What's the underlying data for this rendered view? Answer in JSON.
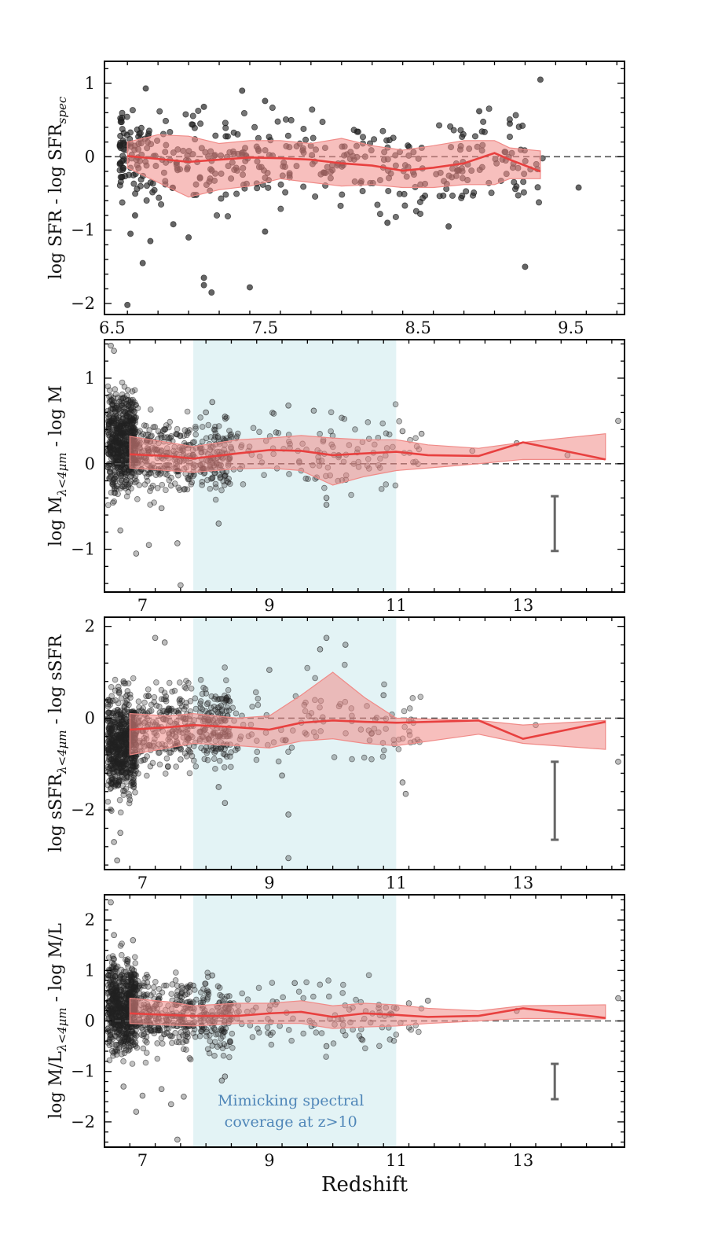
{
  "colors": {
    "points": "#222222",
    "median_line": "#e8403f",
    "band_fill": "#f08a87",
    "shade": "#d4ecef",
    "zero_line": "#555555",
    "errorbar": "#666666",
    "annotation": "#4f86b8"
  },
  "chart_data": [
    {
      "type": "scatter",
      "ylabel": "log SFR - log SFR",
      "ylabel_sub": "spec",
      "xlim": [
        6.45,
        9.85
      ],
      "ylim": [
        -2.15,
        1.3
      ],
      "xticks": [
        6.5,
        7.5,
        8.5,
        9.5
      ],
      "yticks": [
        -2,
        -1,
        0,
        1
      ],
      "xlabel": "",
      "shade": null,
      "median": {
        "x": [
          6.6,
          6.8,
          7.0,
          7.2,
          7.4,
          7.6,
          7.8,
          8.0,
          8.2,
          8.4,
          8.6,
          8.8,
          9.0,
          9.1,
          9.3
        ],
        "y": [
          0.01,
          -0.03,
          -0.07,
          -0.04,
          -0.01,
          -0.02,
          -0.04,
          -0.09,
          -0.12,
          -0.19,
          -0.15,
          -0.09,
          0.05,
          -0.04,
          -0.2
        ],
        "lo": [
          -0.15,
          -0.35,
          -0.55,
          -0.45,
          -0.4,
          -0.3,
          -0.35,
          -0.4,
          -0.38,
          -0.42,
          -0.42,
          -0.38,
          -0.38,
          -0.3,
          -0.3
        ],
        "hi": [
          0.2,
          0.3,
          0.28,
          0.18,
          0.22,
          0.22,
          0.18,
          0.25,
          0.15,
          0.09,
          0.15,
          0.22,
          0.22,
          0.12,
          0.08
        ]
      },
      "errorbar": null,
      "points_spread": 0.3,
      "points_x_range": [
        6.55,
        9.35
      ],
      "points": [
        [
          6.62,
          -1.05
        ],
        [
          6.65,
          -0.8
        ],
        [
          6.7,
          -1.45
        ],
        [
          6.72,
          0.93
        ],
        [
          6.75,
          -1.15
        ],
        [
          6.9,
          -0.92
        ],
        [
          7.0,
          -1.1
        ],
        [
          7.05,
          -0.52
        ],
        [
          7.1,
          -1.65
        ],
        [
          7.15,
          -1.85
        ],
        [
          6.6,
          -2.02
        ],
        [
          7.1,
          -1.75
        ],
        [
          7.5,
          -1.02
        ],
        [
          7.4,
          -1.78
        ],
        [
          7.35,
          0.9
        ],
        [
          8.3,
          -0.9
        ],
        [
          8.7,
          -0.95
        ],
        [
          9.2,
          -1.5
        ],
        [
          9.55,
          -0.42
        ],
        [
          9.3,
          1.05
        ],
        [
          8.9,
          0.62
        ],
        [
          9.1,
          0.45
        ],
        [
          7.5,
          0.76
        ],
        [
          7.1,
          0.68
        ]
      ],
      "annotation": null
    },
    {
      "type": "scatter",
      "ylabel": "log M",
      "ylabel_sub": "λ<4μm",
      "ylabel_tail": " - log M",
      "xlim": [
        6.4,
        14.6
      ],
      "ylim": [
        -1.5,
        1.45
      ],
      "xticks": [
        7,
        9,
        11,
        13
      ],
      "yticks": [
        -1,
        0,
        1
      ],
      "xlabel": "",
      "shade": [
        7.8,
        11.0
      ],
      "median": {
        "x": [
          6.8,
          7.4,
          7.8,
          8.5,
          9.0,
          9.5,
          10.0,
          10.5,
          11.0,
          11.5,
          12.3,
          13.0,
          14.3
        ],
        "y": [
          0.11,
          0.09,
          0.06,
          0.12,
          0.16,
          0.15,
          0.1,
          0.12,
          0.14,
          0.1,
          0.09,
          0.25,
          0.05
        ],
        "lo": [
          -0.05,
          -0.08,
          -0.1,
          -0.06,
          -0.05,
          -0.08,
          -0.25,
          -0.15,
          -0.08,
          -0.05,
          0.0,
          0.05,
          0.05
        ],
        "hi": [
          0.32,
          0.25,
          0.2,
          0.28,
          0.3,
          0.33,
          0.3,
          0.28,
          0.28,
          0.22,
          0.18,
          0.25,
          0.35
        ]
      },
      "errorbar": {
        "x": 13.5,
        "y_top": -0.38,
        "y_bottom": -1.02
      },
      "points_spread": 0.22,
      "points_x_range": [
        6.5,
        11.5
      ],
      "points": [
        [
          6.55,
          1.32
        ],
        [
          6.5,
          1.38
        ],
        [
          6.65,
          -0.78
        ],
        [
          6.9,
          -1.05
        ],
        [
          7.1,
          -0.95
        ],
        [
          7.3,
          -0.52
        ],
        [
          7.55,
          -0.93
        ],
        [
          7.6,
          -1.42
        ],
        [
          8.2,
          -0.7
        ],
        [
          8.3,
          0.55
        ],
        [
          8.1,
          0.72
        ],
        [
          9.3,
          0.68
        ],
        [
          9.9,
          -0.48
        ],
        [
          9.9,
          -0.4
        ],
        [
          12.2,
          0.15
        ],
        [
          12.9,
          0.24
        ],
        [
          13.7,
          0.1
        ],
        [
          14.5,
          0.5
        ],
        [
          11.1,
          0.38
        ],
        [
          11.4,
          0.35
        ],
        [
          9.7,
          0.62
        ],
        [
          8.0,
          0.6
        ]
      ],
      "annotation": null
    },
    {
      "type": "scatter",
      "ylabel": "log sSFR",
      "ylabel_sub": "λ<4μm",
      "ylabel_tail": " - log sSFR",
      "xlim": [
        6.4,
        14.6
      ],
      "ylim": [
        -3.3,
        2.2
      ],
      "xticks": [
        7,
        9,
        11,
        13
      ],
      "yticks": [
        -2,
        0,
        2
      ],
      "xlabel": "",
      "shade": [
        7.8,
        11.0
      ],
      "median": {
        "x": [
          6.8,
          7.4,
          7.8,
          8.5,
          9.0,
          9.5,
          10.0,
          10.5,
          11.0,
          12.3,
          13.0,
          14.3
        ],
        "y": [
          -0.25,
          -0.2,
          -0.15,
          -0.2,
          -0.25,
          -0.1,
          -0.05,
          -0.08,
          -0.1,
          -0.05,
          -0.45,
          -0.08
        ],
        "lo": [
          -0.8,
          -0.65,
          -0.55,
          -0.6,
          -0.65,
          -0.5,
          -0.45,
          -0.55,
          -0.6,
          -0.35,
          -0.55,
          -0.68
        ],
        "hi": [
          0.1,
          0.05,
          0.1,
          0.0,
          0.05,
          0.5,
          1.0,
          0.45,
          0.0,
          -0.05,
          -0.15,
          -0.05
        ]
      },
      "errorbar": {
        "x": 13.5,
        "y_top": -0.95,
        "y_bottom": -2.65
      },
      "points_spread": 0.45,
      "points_x_range": [
        6.5,
        11.5
      ],
      "points": [
        [
          6.55,
          -2.7
        ],
        [
          6.6,
          -3.1
        ],
        [
          6.65,
          -2.5
        ],
        [
          6.7,
          0.8
        ],
        [
          7.2,
          1.75
        ],
        [
          7.35,
          1.65
        ],
        [
          9.0,
          1.05
        ],
        [
          9.9,
          1.75
        ],
        [
          9.8,
          1.5
        ],
        [
          10.2,
          1.6
        ],
        [
          9.3,
          -2.1
        ],
        [
          9.3,
          -3.05
        ],
        [
          11.1,
          -1.4
        ],
        [
          11.15,
          -1.65
        ],
        [
          14.5,
          -0.95
        ],
        [
          13.2,
          -0.15
        ],
        [
          8.2,
          -1.5
        ],
        [
          8.3,
          -1.85
        ],
        [
          7.6,
          -0.9
        ],
        [
          7.4,
          -1.05
        ],
        [
          10.8,
          0.5
        ],
        [
          9.2,
          -1.25
        ]
      ],
      "annotation": null
    },
    {
      "type": "scatter",
      "ylabel": "log M/L",
      "ylabel_sub": "λ<4μm",
      "ylabel_tail": " - log M/L",
      "xlim": [
        6.4,
        14.6
      ],
      "ylim": [
        -2.5,
        2.5
      ],
      "xticks": [
        7,
        9,
        11,
        13
      ],
      "yticks": [
        -2,
        -1,
        0,
        1,
        2
      ],
      "xlabel": "Redshift",
      "shade": [
        7.8,
        11.0
      ],
      "median": {
        "x": [
          6.8,
          7.4,
          7.8,
          8.5,
          9.0,
          9.5,
          10.0,
          10.5,
          11.0,
          11.5,
          12.3,
          13.0,
          14.3
        ],
        "y": [
          0.15,
          0.12,
          0.1,
          0.1,
          0.15,
          0.18,
          0.08,
          0.15,
          0.12,
          0.08,
          0.1,
          0.25,
          0.06
        ],
        "lo": [
          -0.05,
          -0.08,
          -0.1,
          -0.05,
          -0.05,
          -0.05,
          -0.15,
          -0.12,
          -0.1,
          -0.05,
          0.0,
          0.05,
          0.04
        ],
        "hi": [
          0.45,
          0.38,
          0.3,
          0.35,
          0.35,
          0.4,
          0.3,
          0.35,
          0.32,
          0.25,
          0.2,
          0.3,
          0.32
        ]
      },
      "errorbar": {
        "x": 13.5,
        "y_top": -0.85,
        "y_bottom": -1.55
      },
      "points_spread": 0.35,
      "points_x_range": [
        6.5,
        11.5
      ],
      "points": [
        [
          6.5,
          2.35
        ],
        [
          6.55,
          1.7
        ],
        [
          6.7,
          -1.3
        ],
        [
          6.9,
          -1.8
        ],
        [
          7.0,
          -1.48
        ],
        [
          7.3,
          -1.35
        ],
        [
          7.45,
          -1.65
        ],
        [
          7.55,
          -2.35
        ],
        [
          7.65,
          -1.5
        ],
        [
          8.3,
          -1.1
        ],
        [
          8.25,
          -1.18
        ],
        [
          8.1,
          0.9
        ],
        [
          9.9,
          -0.5
        ],
        [
          14.5,
          0.45
        ],
        [
          12.9,
          0.2
        ],
        [
          11.2,
          0.35
        ],
        [
          11.5,
          0.4
        ],
        [
          9.4,
          0.75
        ],
        [
          6.85,
          1.6
        ],
        [
          7.8,
          0.7
        ]
      ],
      "annotation": [
        "Mimicking spectral",
        "coverage at z>10"
      ]
    }
  ]
}
